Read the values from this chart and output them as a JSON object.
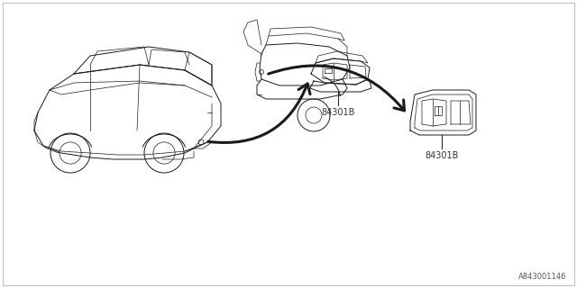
{
  "background_color": "#ffffff",
  "border_color": "#c0c0c0",
  "diagram_code": "A843001146",
  "part_label_1": "84301B",
  "part_label_2": "84301B",
  "text_color": "#333333",
  "line_color": "#1a1a1a",
  "fig_width": 6.4,
  "fig_height": 3.2,
  "dpi": 100,
  "lw_body": 0.7,
  "lw_detail": 0.5,
  "lw_arrow": 2.2
}
